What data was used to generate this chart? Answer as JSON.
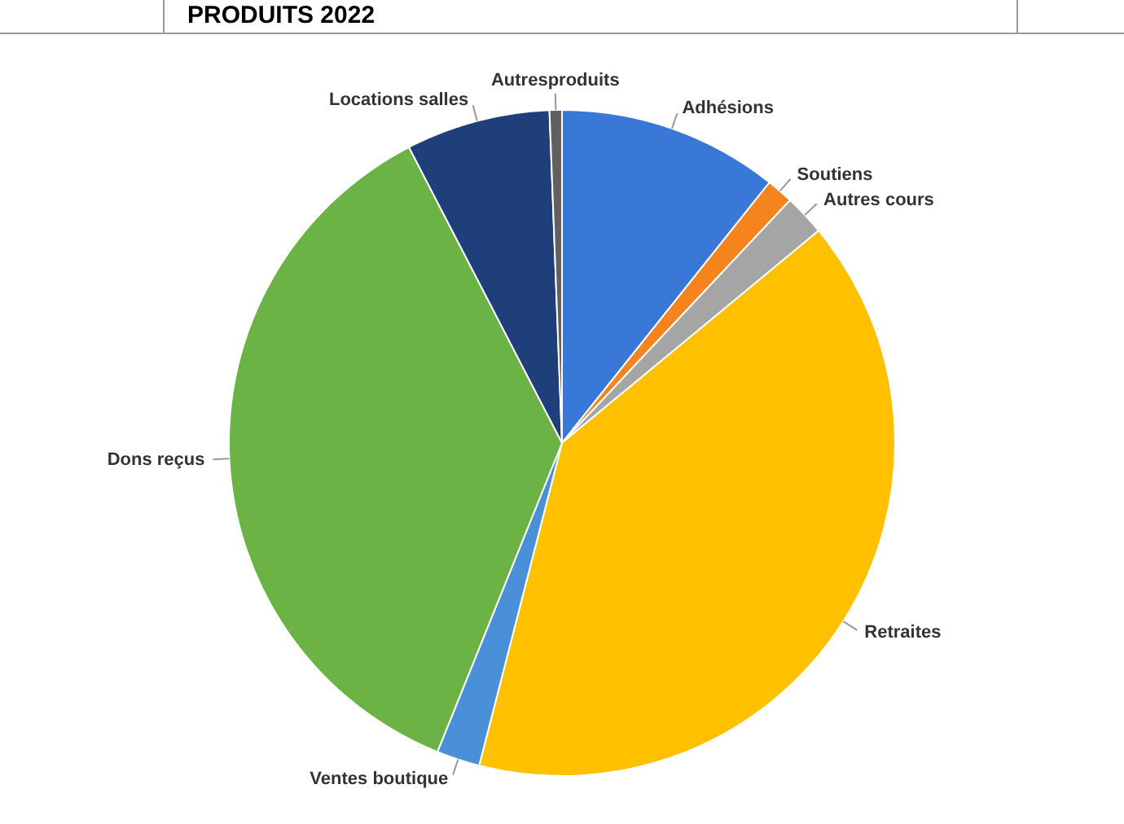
{
  "chart_data": {
    "type": "pie",
    "title": "PRODUITS 2022",
    "categories": [
      "Adhésions",
      "Soutiens",
      "Autres cours",
      "Retraites",
      "Ventes boutique",
      "Dons reçus",
      "Locations salles",
      "Autresproduits"
    ],
    "values": [
      10.7,
      1.3,
      2,
      40,
      2.1,
      36.3,
      7,
      0.6
    ],
    "colors": [
      "#3a78d8",
      "#f5841f",
      "#a5a5a5",
      "#ffc000",
      "#4a90d9",
      "#6ab344",
      "#1f3f7a",
      "#606060"
    ],
    "legend": false
  }
}
